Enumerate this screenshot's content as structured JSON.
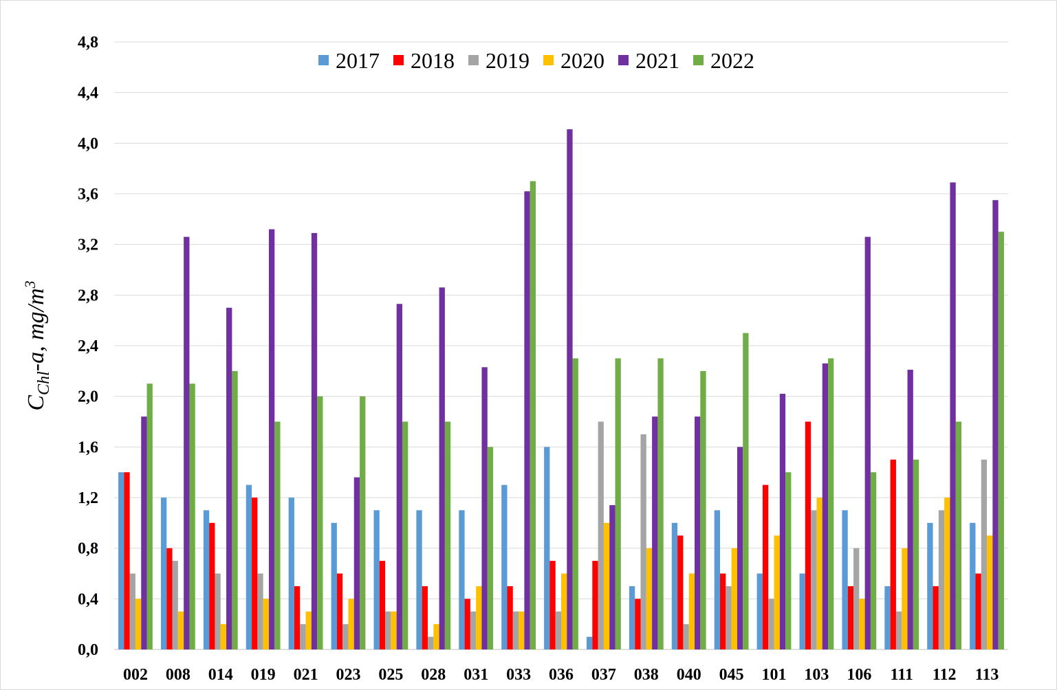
{
  "chart_data": {
    "type": "bar",
    "title": "",
    "xlabel": "",
    "ylabel": {
      "main": "C",
      "sub": "Chl",
      "rest": "-a, mg/m",
      "sup": "3"
    },
    "ylim": [
      0,
      4.8
    ],
    "yticks": [
      "0,0",
      "0,4",
      "0,8",
      "1,2",
      "1,6",
      "2,0",
      "2,4",
      "2,8",
      "3,2",
      "3,6",
      "4,0",
      "4,4",
      "4,8"
    ],
    "grid": true,
    "legend_position": "top-center",
    "categories": [
      "002",
      "008",
      "014",
      "019",
      "021",
      "023",
      "025",
      "028",
      "031",
      "033",
      "036",
      "037",
      "038",
      "040",
      "045",
      "101",
      "103",
      "106",
      "111",
      "112",
      "113"
    ],
    "series": [
      {
        "name": "2017",
        "color": "#5b9bd5",
        "values": [
          1.4,
          1.2,
          1.1,
          1.3,
          1.2,
          1.0,
          1.1,
          1.1,
          1.1,
          1.3,
          1.6,
          0.1,
          0.5,
          1.0,
          1.1,
          0.6,
          0.6,
          1.1,
          0.5,
          1.0,
          1.0
        ]
      },
      {
        "name": "2018",
        "color": "#ff0000",
        "values": [
          1.4,
          0.8,
          1.0,
          1.2,
          0.5,
          0.6,
          0.7,
          0.5,
          0.4,
          0.5,
          0.7,
          0.7,
          0.4,
          0.9,
          0.6,
          1.3,
          1.8,
          0.5,
          1.5,
          0.5,
          0.6
        ]
      },
      {
        "name": "2019",
        "color": "#a5a5a5",
        "values": [
          0.6,
          0.7,
          0.6,
          0.6,
          0.2,
          0.2,
          0.3,
          0.1,
          0.3,
          0.3,
          0.3,
          1.8,
          1.7,
          0.2,
          0.5,
          0.4,
          1.1,
          0.8,
          0.3,
          1.1,
          1.5
        ]
      },
      {
        "name": "2020",
        "color": "#ffc000",
        "values": [
          0.4,
          0.3,
          0.2,
          0.4,
          0.3,
          0.4,
          0.3,
          0.2,
          0.5,
          0.3,
          0.6,
          1.0,
          0.8,
          0.6,
          0.8,
          0.9,
          1.2,
          0.4,
          0.8,
          1.2,
          0.9
        ]
      },
      {
        "name": "2021",
        "color": "#7030a0",
        "values": [
          1.84,
          3.26,
          2.7,
          3.32,
          3.29,
          1.36,
          2.73,
          2.86,
          2.23,
          3.62,
          4.11,
          1.14,
          1.84,
          1.84,
          1.6,
          2.02,
          2.26,
          3.26,
          2.21,
          3.69,
          3.55
        ]
      },
      {
        "name": "2022",
        "color": "#70ad47",
        "values": [
          2.1,
          2.1,
          2.2,
          1.8,
          2.0,
          2.0,
          1.8,
          1.8,
          1.6,
          3.7,
          2.3,
          2.3,
          2.3,
          2.2,
          2.5,
          1.4,
          2.3,
          1.4,
          1.5,
          1.8,
          3.3
        ]
      }
    ]
  }
}
